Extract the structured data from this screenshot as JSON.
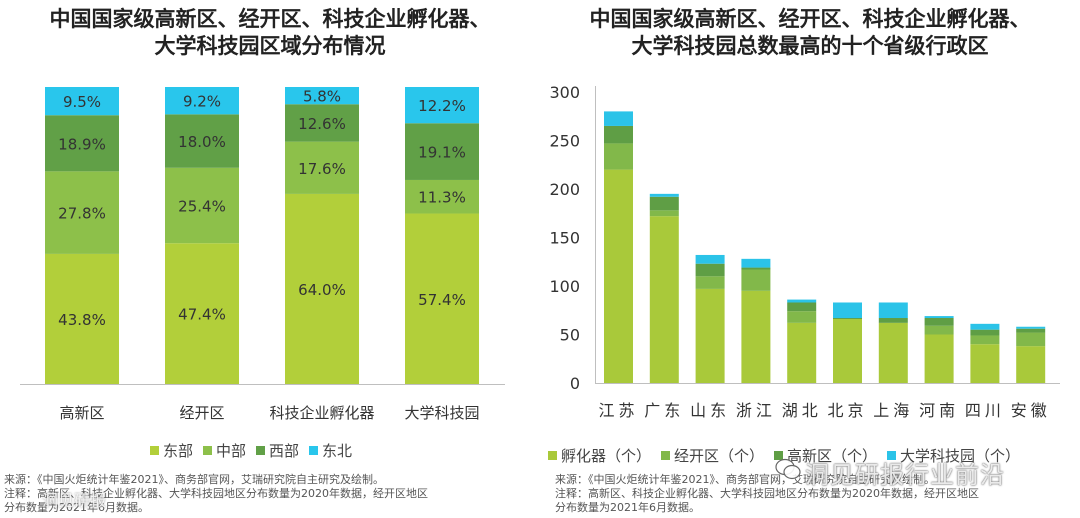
{
  "left_title": [
    "中国国家级高新区、经开区、科技企业孵化器、",
    "大学科技园区域分布情况"
  ],
  "right_title": [
    "中国国家级高新区、经开区、科技企业孵化器、",
    "大学科技园总数最高的十个省级行政区"
  ],
  "left_legend": [
    {
      "label": "东部",
      "color": "#b2cf3a"
    },
    {
      "label": "中部",
      "color": "#8dc04a"
    },
    {
      "label": "西部",
      "color": "#61a047"
    },
    {
      "label": "东北",
      "color": "#29c6ec"
    }
  ],
  "right_legend": [
    {
      "label": "孵化器（个）",
      "color": "#a9c93a"
    },
    {
      "label": "经开区（个）",
      "color": "#82b84a"
    },
    {
      "label": "高新区（个）",
      "color": "#5f9e45"
    },
    {
      "label": "大学科技园（个）",
      "color": "#2bc3e8"
    }
  ],
  "left_note": [
    "来源：《中国火炬统计年鉴2021》、商务部官网，艾瑞研究院自主研究及绘制。",
    "注释：高新区、科技企业孵化器、大学科技园地区分布数量为2020年数据，经开区地区",
    "分布数量为2021年6月数据。"
  ],
  "right_note": [
    "来源：《中国火炬统计年鉴2021》、商务部官网，艾瑞研究院自主研究及绘制。",
    "注释：高新区、科技企业孵化器、大学科技园地区分布数量为2020年数据，经开区地区",
    "分布数量为2021年6月数据。"
  ],
  "watermark": "洞见研报行业前沿",
  "left_watermark": "洞见研报",
  "chart_data": [
    {
      "type": "bar",
      "stacked": true,
      "percent": true,
      "title": "中国国家级高新区、经开区、科技企业孵化器、大学科技园区域分布情况",
      "categories": [
        "高新区",
        "经开区",
        "科技企业孵化器",
        "大学科技园"
      ],
      "series": [
        {
          "name": "东部",
          "values": [
            43.8,
            47.4,
            64.0,
            57.4
          ],
          "labels": [
            "43.8%",
            "47.4%",
            "64.0%",
            "57.4%"
          ]
        },
        {
          "name": "中部",
          "values": [
            27.8,
            25.4,
            17.6,
            11.3
          ],
          "labels": [
            "27.8%",
            "25.4%",
            "17.6%",
            "11.3%"
          ]
        },
        {
          "name": "西部",
          "values": [
            18.9,
            18.0,
            12.6,
            19.1
          ],
          "labels": [
            "18.9%",
            "18.0%",
            "12.6%",
            "19.1%"
          ]
        },
        {
          "name": "东北",
          "values": [
            9.5,
            9.2,
            5.8,
            12.2
          ],
          "labels": [
            "9.5%",
            "9.2%",
            "5.8%",
            "12.2%"
          ]
        }
      ],
      "ylim": [
        0,
        100
      ],
      "legend": "bottom"
    },
    {
      "type": "bar",
      "stacked": true,
      "title": "中国国家级高新区、经开区、科技企业孵化器、大学科技园总数最高的十个省级行政区",
      "categories": [
        "江苏",
        "广东",
        "山东",
        "浙江",
        "湖北",
        "北京",
        "上海",
        "河南",
        "四川",
        "安徽"
      ],
      "series": [
        {
          "name": "孵化器（个）",
          "values": [
            220,
            172,
            97,
            95,
            62,
            66,
            62,
            50,
            40,
            38
          ]
        },
        {
          "name": "经开区（个）",
          "values": [
            27,
            6,
            13,
            22,
            12,
            0,
            0,
            9,
            9,
            14
          ]
        },
        {
          "name": "高新区（个）",
          "values": [
            18,
            14,
            13,
            2,
            9,
            1,
            5,
            8,
            6,
            4
          ]
        },
        {
          "name": "大学科技园（个）",
          "values": [
            15,
            3,
            9,
            9,
            3,
            16,
            16,
            2,
            6,
            2
          ]
        }
      ],
      "ylim": [
        0,
        300
      ],
      "yticks": [
        0,
        50,
        100,
        150,
        200,
        250,
        300
      ],
      "legend": "bottom"
    }
  ]
}
